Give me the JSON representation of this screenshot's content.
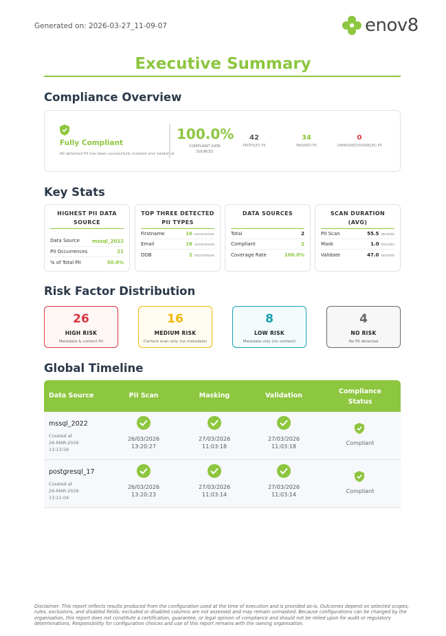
{
  "header": {
    "generated_label": "Generated on: 2026-03-27_11-09-07",
    "logo_text": "enov8"
  },
  "title": "Executive Summary",
  "compliance": {
    "heading": "Compliance Overview",
    "status": "Fully Compliant",
    "status_sub": "All detected PII has been successfully masked and validated.",
    "percent": "100.0%",
    "percent_label": "COMPLIANT DATA SOURCES",
    "stats": [
      {
        "value": "42",
        "label": "PROFILED PII",
        "color": "#555555"
      },
      {
        "value": "34",
        "label": "MASKED PII",
        "color": "#8dc63f"
      },
      {
        "value": "0",
        "label": "UNMASKED/DISABLED PII",
        "color": "#d9363e"
      }
    ]
  },
  "key_stats": {
    "heading": "Key Stats",
    "cards": [
      {
        "title": "HIGHEST PII DATA SOURCE",
        "rows": [
          {
            "label": "Data Source",
            "value": "mssql_2022",
            "unit": ""
          },
          {
            "label": "PII Occurrences",
            "value": "21",
            "unit": ""
          },
          {
            "label": "% of Total PII",
            "value": "50.0%",
            "unit": ""
          }
        ]
      },
      {
        "title": "TOP THREE DETECTED PII TYPES",
        "rows": [
          {
            "label": "Firstname",
            "value": "16",
            "unit": "occurrences"
          },
          {
            "label": "Email",
            "value": "16",
            "unit": "occurrences"
          },
          {
            "label": "DOB",
            "value": "2",
            "unit": "occurrences"
          }
        ]
      },
      {
        "title": "DATA SOURCES",
        "rows": [
          {
            "label": "Total",
            "value": "2",
            "unit": ""
          },
          {
            "label": "Compliant",
            "value": "2",
            "unit": ""
          },
          {
            "label": "Coverage Rate",
            "value": "100.0%",
            "unit": ""
          }
        ]
      },
      {
        "title": "SCAN DURATION (AVG)",
        "rows": [
          {
            "label": "PII Scan",
            "value": "55.5",
            "unit": "seconds"
          },
          {
            "label": "Mask",
            "value": "1.0",
            "unit": "minutes"
          },
          {
            "label": "Validate",
            "value": "47.0",
            "unit": "seconds"
          }
        ]
      }
    ]
  },
  "risk": {
    "heading": "Risk Factor Distribution",
    "items": [
      {
        "value": "26",
        "label": "HIGH RISK",
        "sub": "Metadata & content PII",
        "color": "#d9363e",
        "bg": "#fff6f6"
      },
      {
        "value": "16",
        "label": "MEDIUM RISK",
        "sub": "Content scan only (no metadata)",
        "color": "#f2b705",
        "bg": "#fffdf2"
      },
      {
        "value": "8",
        "label": "LOW RISK",
        "sub": "Metadata only (no content)",
        "color": "#1a9fb0",
        "bg": "#f3fbfc"
      },
      {
        "value": "4",
        "label": "NO RISK",
        "sub": "No PII detected",
        "color": "#666666",
        "bg": "#f7f7f7"
      }
    ]
  },
  "timeline": {
    "heading": "Global Timeline",
    "columns": [
      "Data Source",
      "PII Scan",
      "Masking",
      "Validation",
      "Compliance Status"
    ],
    "rows": [
      {
        "source": "mssql_2022",
        "created_label": "Created at",
        "created_date": "26-MAR-2026",
        "created_time": "13:13:59",
        "scan_date": "26/03/2026",
        "scan_time": "13:20:27",
        "mask_date": "27/03/2026",
        "mask_time": "11:03:18",
        "val_date": "27/03/2026",
        "val_time": "11:03:18",
        "status": "Compliant"
      },
      {
        "source": "postgresql_17",
        "created_label": "Created at",
        "created_date": "26-MAR-2026",
        "created_time": "13:11:04",
        "scan_date": "26/03/2026",
        "scan_time": "13:20:23",
        "mask_date": "27/03/2026",
        "mask_time": "11:03:14",
        "val_date": "27/03/2026",
        "val_time": "11:03:14",
        "status": "Compliant"
      }
    ]
  },
  "disclaimer": "Disclaimer: This report reflects results produced from the configuration used at the time of execution and is provided as-is. Outcomes depend on selected scopes, rules, exclusions, and disabled fields; excluded or disabled columns are not assessed and may remain unmasked. Because configurations can be changed by the organisation, this report does not constitute a certification, guarantee, or legal opinion of compliance and should not be relied upon for audit or regulatory determinations. Responsibility for configuration choices and use of this report remains with the owning organisation."
}
